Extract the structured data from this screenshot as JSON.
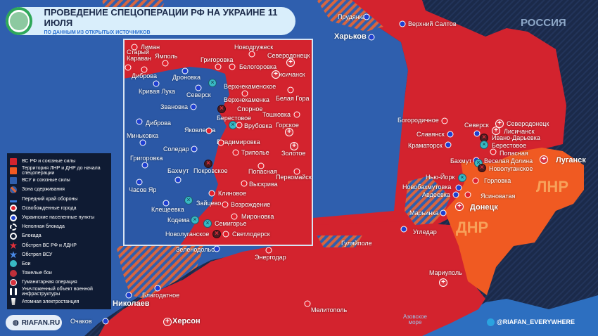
{
  "header": {
    "title": "ПРОВЕДЕНИЕ СПЕЦОПЕРАЦИИ РФ НА УКРАИНЕ 11 ИЮЛЯ",
    "subtitle": "ПО ДАННЫМ ИЗ ОТКРЫТЫХ ИСТОЧНИКОВ"
  },
  "colors": {
    "russia_forces": "#d3232e",
    "lnr_dnr": "#f05a22",
    "ukraine_forces": "#2f5fae",
    "background": "#1b2a4a",
    "fight": "#38b9c4"
  },
  "legend": [
    {
      "label": "ВС РФ и союзные силы",
      "icon": "red-square"
    },
    {
      "label": "Территория ЛНР и ДНР до начала спецоперации",
      "icon": "orange-square"
    },
    {
      "label": "ВСУ и союзные силы",
      "icon": "blue-square"
    },
    {
      "label": "Зона сдерживания",
      "icon": "hatched-zone"
    },
    {
      "label": "Передний край обороны",
      "icon": "defense-line"
    },
    {
      "label": "Освобожденные города",
      "icon": "red-dot"
    },
    {
      "label": "Украинские населенные пункты",
      "icon": "blue-dot"
    },
    {
      "label": "Неполная блокада",
      "icon": "dashed-ring"
    },
    {
      "label": "Блокада",
      "icon": "ring"
    },
    {
      "label": "Обстрел ВС РФ и ЛДНР",
      "icon": "red-explosion"
    },
    {
      "label": "Обстрел ВСУ",
      "icon": "blue-explosion"
    },
    {
      "label": "Бои",
      "icon": "fight"
    },
    {
      "label": "Тяжелые бои",
      "icon": "heavy-fight"
    },
    {
      "label": "Гуманитарная операция",
      "icon": "humanitarian-cross"
    },
    {
      "label": "Уничтоженный объект военной инфраструктуры",
      "icon": "destroyed-facility"
    },
    {
      "label": "Атомная электростанция",
      "icon": "nuclear-plant"
    }
  ],
  "regions": {
    "russia": "РОССИЯ",
    "lnr": "ЛНР",
    "dnr": "ДНР",
    "sea": "Азовское море"
  },
  "places": [
    {
      "name": "Лиман",
      "type": "liberated"
    },
    {
      "name": "Старый Караван",
      "type": "liberated"
    },
    {
      "name": "Ямполь",
      "type": "liberated"
    },
    {
      "name": "Диброва",
      "type": "liberated"
    },
    {
      "name": "Кривая Лука",
      "type": "ukrainian"
    },
    {
      "name": "Дроновка",
      "type": "ukrainian"
    },
    {
      "name": "Северск",
      "type": "ukrainian"
    },
    {
      "name": "Звановка",
      "type": "ukrainian"
    },
    {
      "name": "Диброва",
      "type": "ukrainian"
    },
    {
      "name": "Миньковка",
      "type": "ukrainian"
    },
    {
      "name": "Новодружеск",
      "type": "liberated"
    },
    {
      "name": "Северодонецк",
      "type": "humanitarian"
    },
    {
      "name": "Григоровка",
      "type": "liberated"
    },
    {
      "name": "Белогоровка",
      "type": "liberated"
    },
    {
      "name": "Лисичанск",
      "type": "humanitarian"
    },
    {
      "name": "Верхнекаменское",
      "type": "fight"
    },
    {
      "name": "Верхнекаменка",
      "type": "liberated"
    },
    {
      "name": "Белая Гора",
      "type": "liberated"
    },
    {
      "name": "Спорное",
      "type": "heavy"
    },
    {
      "name": "Берестовое",
      "type": "fight"
    },
    {
      "name": "Врубовка",
      "type": "liberated"
    },
    {
      "name": "Тошковка",
      "type": "liberated"
    },
    {
      "name": "Горское",
      "type": "humanitarian"
    },
    {
      "name": "Яковлевка",
      "type": "liberated"
    },
    {
      "name": "Владимировка",
      "type": "liberated"
    },
    {
      "name": "Соледар",
      "type": "ukrainian"
    },
    {
      "name": "Триполье",
      "type": "liberated"
    },
    {
      "name": "Золотое",
      "type": "humanitarian"
    },
    {
      "name": "Григоровка",
      "type": "ukrainian"
    },
    {
      "name": "Попасная",
      "type": "liberated"
    },
    {
      "name": "Первомайск",
      "type": "liberated"
    },
    {
      "name": "Покровское",
      "type": "heavy"
    },
    {
      "name": "Бахмут",
      "type": "ukrainian"
    },
    {
      "name": "Часов Яр",
      "type": "ukrainian"
    },
    {
      "name": "Выскрива",
      "type": "liberated"
    },
    {
      "name": "Клиновое",
      "type": "liberated"
    },
    {
      "name": "Зайцево",
      "type": "fight"
    },
    {
      "name": "Возрождение",
      "type": "liberated"
    },
    {
      "name": "Клещеевка",
      "type": "ukrainian"
    },
    {
      "name": "Мироновка",
      "type": "liberated"
    },
    {
      "name": "Кодема",
      "type": "fight"
    },
    {
      "name": "Семигорье",
      "type": "fight"
    },
    {
      "name": "Новолуганское",
      "type": "heavy"
    },
    {
      "name": "Светлодерск",
      "type": "liberated"
    },
    {
      "name": "Богородичное",
      "type": "liberated"
    },
    {
      "name": "Славянск",
      "type": "ukrainian"
    },
    {
      "name": "Краматорск",
      "type": "ukrainian"
    },
    {
      "name": "Северск",
      "type": "ukrainian"
    },
    {
      "name": "Северодонецк",
      "type": "humanitarian"
    },
    {
      "name": "Лисичанск",
      "type": "humanitarian"
    },
    {
      "name": "Ивано-Дарьевка",
      "type": "heavy"
    },
    {
      "name": "Берестовое",
      "type": "fight"
    },
    {
      "name": "Попасная",
      "type": "liberated"
    },
    {
      "name": "Бахмут",
      "type": "ukrainian"
    },
    {
      "name": "Веселая Долина",
      "type": "fight"
    },
    {
      "name": "Новолуганское",
      "type": "heavy"
    },
    {
      "name": "Луганск",
      "type": "humanitarian"
    },
    {
      "name": "Нью-Йорк",
      "type": "fight"
    },
    {
      "name": "Горловка",
      "type": "liberated"
    },
    {
      "name": "Новобахмутовка",
      "type": "ukrainian"
    },
    {
      "name": "Авдеевка",
      "type": "ukrainian"
    },
    {
      "name": "Ясиноватая",
      "type": "liberated"
    },
    {
      "name": "Донецк",
      "type": "humanitarian"
    },
    {
      "name": "Марьинка",
      "type": "ukrainian"
    },
    {
      "name": "Угледар",
      "type": "ukrainian"
    },
    {
      "name": "Прудянка",
      "type": "ukrainian"
    },
    {
      "name": "Верхний Салтов",
      "type": "ukrainian"
    },
    {
      "name": "Харьков",
      "type": "ukrainian"
    },
    {
      "name": "Зеленодольск",
      "type": "ukrainian"
    },
    {
      "name": "Энергодар",
      "type": "liberated"
    },
    {
      "name": "Гуляйполе",
      "type": "label"
    },
    {
      "name": "Мариуполь",
      "type": "humanitarian"
    },
    {
      "name": "Благодатное",
      "type": "ukrainian"
    },
    {
      "name": "Николаев",
      "type": "ukrainian"
    },
    {
      "name": "Мелитополь",
      "type": "liberated"
    },
    {
      "name": "Херсон",
      "type": "humanitarian"
    },
    {
      "name": "Очаков",
      "type": "ukrainian"
    }
  ],
  "footer": {
    "brand": "RIAFAN.RU",
    "social": "@RIAFAN_EVERYWHERE"
  }
}
